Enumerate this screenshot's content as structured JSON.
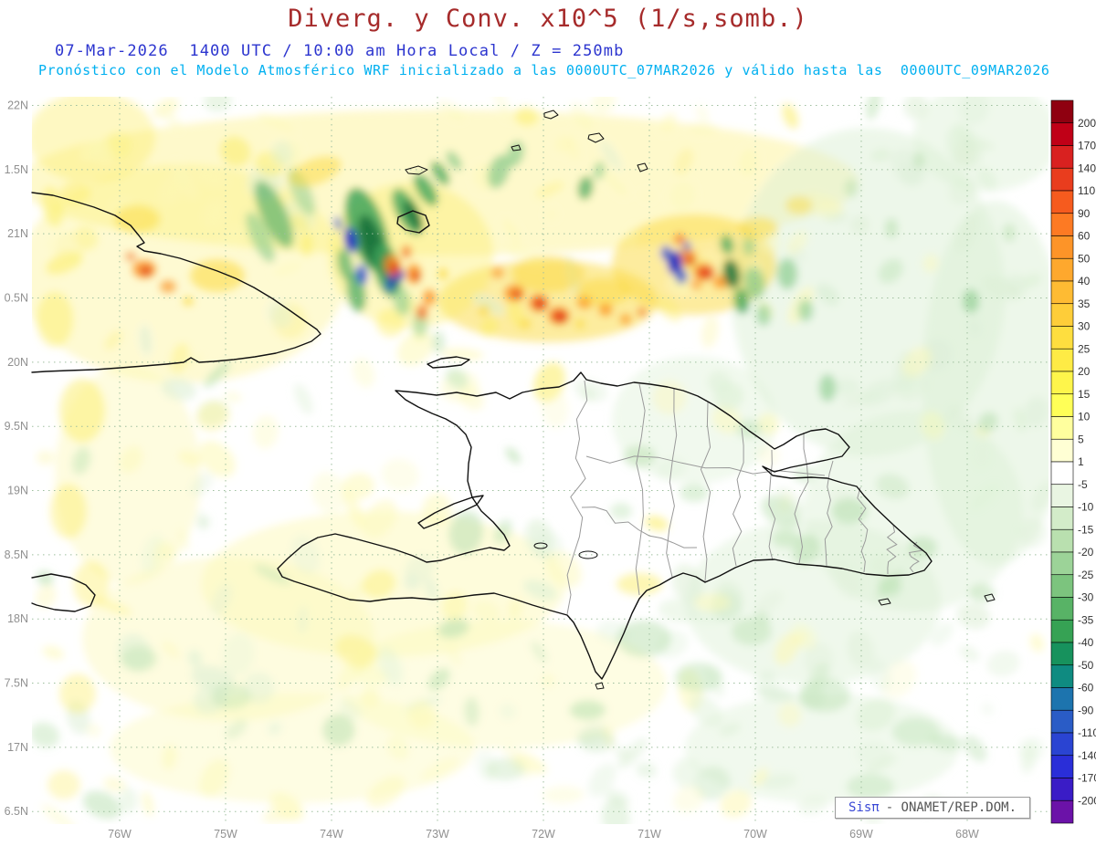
{
  "header": {
    "title": "Diverg. y Conv. x10^5 (1/s,somb.)",
    "subtitle_time": "07-Mar-2026  1400 UTC / 10:00 am Hora Local / Z = 250mb",
    "subtitle_model": "Pronóstico con el Modelo Atmosférico WRF inicializado a las 0000UTC_07MAR2026 y válido hasta las  0000UTC_09MAR2026"
  },
  "credit": {
    "brand": "Sisπ",
    "org": "- ONAMET/REP.DOM."
  },
  "axes": {
    "lat_labels": [
      "22N",
      "1.5N",
      "21N",
      "0.5N",
      "20N",
      "9.5N",
      "19N",
      "8.5N",
      "18N",
      "7.5N",
      "17N",
      "6.5N"
    ],
    "lon_labels": [
      "76W",
      "75W",
      "74W",
      "73W",
      "72W",
      "71W",
      "70W",
      "69W",
      "68W"
    ]
  },
  "colorbar": {
    "labels": [
      "200",
      "170",
      "140",
      "110",
      "90",
      "60",
      "50",
      "40",
      "35",
      "30",
      "25",
      "20",
      "15",
      "10",
      "5",
      "1",
      "-5",
      "-10",
      "-15",
      "-20",
      "-25",
      "-30",
      "-35",
      "-40",
      "-50",
      "-60",
      "-90",
      "-110",
      "-140",
      "-170",
      "-200"
    ],
    "colors": [
      "#8f0010",
      "#c00017",
      "#d92120",
      "#e93d1e",
      "#f65b1e",
      "#fd7a23",
      "#fd9428",
      "#fea82d",
      "#febb33",
      "#fecd39",
      "#fede3f",
      "#feeb45",
      "#fef54b",
      "#ffff57",
      "#ffff9e",
      "#ffffd4",
      "#ffffff",
      "#e9f5e2",
      "#d3ecc9",
      "#b9e0af",
      "#9cd398",
      "#7cc47e",
      "#58b366",
      "#36a254",
      "#17925d",
      "#0f8b81",
      "#1d74ae",
      "#2a5cc6",
      "#2a44d2",
      "#2a2ed8",
      "#3a1cc6",
      "#6b12a8"
    ]
  },
  "colors": {
    "title": "#a62b2b",
    "subtitle_time": "#2c35cf",
    "subtitle_model": "#00b0f0",
    "grid": "#9fbf9f",
    "coast": "#111111",
    "province": "#9a9a9a",
    "axis_text": "#909090",
    "colorbar_text": "#333333"
  },
  "palette": {
    "Y1": "#fdf9b8",
    "Y2": "#fcee6a",
    "Y3": "#fbd93b",
    "O1": "#fb9227",
    "O2": "#f2611e",
    "R1": "#dd2e1a",
    "G1": "#dcefd5",
    "G2": "#b9e0b0",
    "G3": "#85c988",
    "G4": "#3fa55a",
    "G5": "#17713a",
    "T1": "#128a70",
    "B1": "#2b54cc",
    "B2": "#1b2ec2"
  },
  "field": {
    "washes": [
      [
        480,
        200,
        460,
        80,
        0,
        "Y2",
        0.35
      ],
      [
        200,
        300,
        180,
        120,
        0,
        "Y2",
        0.3
      ],
      [
        100,
        150,
        70,
        50,
        0,
        "Y2",
        0.4
      ],
      [
        950,
        320,
        150,
        180,
        0,
        "G1",
        0.5
      ],
      [
        1090,
        420,
        80,
        200,
        0,
        "G1",
        0.5
      ],
      [
        1000,
        560,
        120,
        110,
        0,
        "G1",
        0.45
      ],
      [
        890,
        660,
        140,
        90,
        0,
        "G1",
        0.45
      ],
      [
        760,
        460,
        90,
        70,
        0,
        "G1",
        0.4
      ],
      [
        1080,
        150,
        80,
        60,
        0,
        "G1",
        0.45
      ],
      [
        420,
        640,
        200,
        80,
        0,
        "Y1",
        0.5
      ],
      [
        250,
        700,
        160,
        90,
        0,
        "Y1",
        0.45
      ],
      [
        550,
        750,
        180,
        70,
        0,
        "Y1",
        0.4
      ],
      [
        140,
        520,
        80,
        120,
        0,
        "Y1",
        0.45
      ],
      [
        320,
        820,
        200,
        60,
        0,
        "Y1",
        0.4
      ],
      [
        900,
        820,
        150,
        60,
        0,
        "G1",
        0.4
      ],
      [
        600,
        330,
        120,
        45,
        0,
        "Y3",
        0.5
      ],
      [
        760,
        290,
        90,
        55,
        0,
        "Y3",
        0.5
      ],
      [
        450,
        280,
        90,
        80,
        0,
        "Y2",
        0.4
      ]
    ],
    "blobs": [
      [
        300,
        235,
        14,
        40,
        -25,
        "G4",
        0.6
      ],
      [
        285,
        260,
        10,
        30,
        -25,
        "G3",
        0.6
      ],
      [
        330,
        210,
        10,
        28,
        -25,
        "G3",
        0.5
      ],
      [
        402,
        252,
        20,
        48,
        -18,
        "G4",
        0.85
      ],
      [
        408,
        268,
        12,
        34,
        -18,
        "G5",
        0.9
      ],
      [
        424,
        296,
        14,
        30,
        -12,
        "G4",
        0.85
      ],
      [
        428,
        298,
        8,
        20,
        -12,
        "G5",
        0.9
      ],
      [
        446,
        232,
        12,
        28,
        -28,
        "G4",
        0.8
      ],
      [
        452,
        236,
        7,
        18,
        -28,
        "G5",
        0.85
      ],
      [
        466,
        208,
        9,
        20,
        -32,
        "G4",
        0.8
      ],
      [
        482,
        190,
        7,
        15,
        -33,
        "G4",
        0.75
      ],
      [
        497,
        176,
        6,
        12,
        -35,
        "G3",
        0.7
      ],
      [
        390,
        320,
        10,
        22,
        -10,
        "G4",
        0.7
      ],
      [
        378,
        290,
        8,
        18,
        -12,
        "G4",
        0.65
      ],
      [
        440,
        330,
        9,
        16,
        -8,
        "G3",
        0.6
      ],
      [
        460,
        355,
        8,
        14,
        0,
        "G3",
        0.5
      ],
      [
        480,
        375,
        7,
        12,
        0,
        "G2",
        0.5
      ],
      [
        384,
        263,
        7,
        14,
        -10,
        "B2",
        0.95
      ],
      [
        396,
        301,
        6,
        11,
        -5,
        "B1",
        0.9
      ],
      [
        433,
        301,
        10,
        7,
        0,
        "B2",
        0.95
      ],
      [
        427,
        313,
        5,
        6,
        0,
        "B1",
        0.85
      ],
      [
        370,
        245,
        4,
        8,
        -15,
        "B1",
        0.7
      ],
      [
        430,
        291,
        9,
        12,
        -10,
        "O1",
        0.9
      ],
      [
        432,
        294,
        5,
        7,
        -10,
        "R1",
        0.9
      ],
      [
        453,
        300,
        8,
        11,
        0,
        "O1",
        0.9
      ],
      [
        456,
        303,
        4,
        6,
        0,
        "R1",
        0.85
      ],
      [
        470,
        326,
        7,
        9,
        0,
        "O1",
        0.85
      ],
      [
        462,
        342,
        6,
        8,
        0,
        "O2",
        0.8
      ],
      [
        445,
        276,
        5,
        7,
        0,
        "O2",
        0.8
      ],
      [
        485,
        300,
        5,
        6,
        0,
        "Y3",
        0.8
      ],
      [
        563,
        321,
        11,
        9,
        0,
        "O1",
        0.9
      ],
      [
        566,
        323,
        5,
        5,
        0,
        "R1",
        0.85
      ],
      [
        590,
        332,
        10,
        9,
        0,
        "O2",
        0.9
      ],
      [
        592,
        334,
        5,
        5,
        0,
        "R1",
        0.9
      ],
      [
        612,
        346,
        11,
        9,
        0,
        "O2",
        0.9
      ],
      [
        614,
        348,
        6,
        5,
        0,
        "R1",
        0.9
      ],
      [
        640,
        331,
        8,
        7,
        0,
        "O1",
        0.85
      ],
      [
        663,
        339,
        7,
        7,
        0,
        "O1",
        0.85
      ],
      [
        685,
        350,
        6,
        6,
        0,
        "O1",
        0.75
      ],
      [
        703,
        342,
        5,
        5,
        0,
        "O2",
        0.7
      ],
      [
        545,
        299,
        7,
        6,
        0,
        "O1",
        0.7
      ],
      [
        530,
        340,
        6,
        6,
        0,
        "Y3",
        0.7
      ],
      [
        575,
        355,
        6,
        5,
        0,
        "Y3",
        0.7
      ],
      [
        635,
        355,
        5,
        5,
        0,
        "Y3",
        0.7
      ],
      [
        600,
        300,
        40,
        20,
        0,
        "Y3",
        0.5
      ],
      [
        660,
        320,
        30,
        15,
        0,
        "Y3",
        0.5
      ],
      [
        752,
        282,
        10,
        9,
        0,
        "O1",
        0.9
      ],
      [
        756,
        286,
        5,
        5,
        0,
        "R1",
        0.9
      ],
      [
        771,
        298,
        11,
        9,
        0,
        "O2",
        0.9
      ],
      [
        774,
        300,
        6,
        5,
        0,
        "R1",
        0.85
      ],
      [
        789,
        309,
        8,
        7,
        0,
        "O1",
        0.85
      ],
      [
        762,
        312,
        6,
        5,
        0,
        "O1",
        0.8
      ],
      [
        744,
        262,
        6,
        6,
        0,
        "O2",
        0.7
      ],
      [
        739,
        288,
        8,
        13,
        0,
        "B2",
        0.95
      ],
      [
        746,
        303,
        6,
        8,
        0,
        "B1",
        0.9
      ],
      [
        729,
        277,
        5,
        8,
        0,
        "B1",
        0.85
      ],
      [
        752,
        270,
        4,
        6,
        0,
        "B1",
        0.7
      ],
      [
        801,
        300,
        9,
        16,
        -10,
        "G5",
        0.85
      ],
      [
        812,
        330,
        8,
        14,
        -8,
        "G4",
        0.8
      ],
      [
        796,
        268,
        7,
        11,
        -12,
        "G4",
        0.75
      ],
      [
        826,
        310,
        11,
        18,
        -8,
        "G3",
        0.7
      ],
      [
        836,
        345,
        8,
        12,
        0,
        "G3",
        0.6
      ],
      [
        820,
        270,
        6,
        10,
        0,
        "G3",
        0.6
      ],
      [
        546,
        188,
        11,
        19,
        18,
        "G3",
        0.7
      ],
      [
        564,
        169,
        9,
        15,
        20,
        "G3",
        0.65
      ],
      [
        641,
        206,
        8,
        13,
        10,
        "G4",
        0.7
      ],
      [
        656,
        187,
        6,
        10,
        12,
        "G3",
        0.6
      ],
      [
        862,
        300,
        11,
        17,
        0,
        "G3",
        0.65
      ],
      [
        882,
        340,
        8,
        12,
        0,
        "G3",
        0.6
      ],
      [
        906,
        425,
        9,
        15,
        0,
        "G3",
        0.6
      ],
      [
        1063,
        330,
        9,
        13,
        0,
        "G3",
        0.6
      ],
      [
        976,
        250,
        7,
        11,
        0,
        "G2",
        0.6
      ],
      [
        932,
        206,
        7,
        10,
        0,
        "G2",
        0.55
      ],
      [
        1006,
        176,
        6,
        9,
        0,
        "G2",
        0.55
      ],
      [
        1105,
        255,
        7,
        10,
        0,
        "G2",
        0.5
      ],
      [
        158,
        295,
        13,
        10,
        0,
        "O1",
        0.85
      ],
      [
        160,
        297,
        6,
        5,
        0,
        "R1",
        0.85
      ],
      [
        184,
        314,
        9,
        7,
        0,
        "O1",
        0.7
      ],
      [
        143,
        281,
        6,
        5,
        0,
        "O2",
        0.6
      ],
      [
        206,
        330,
        6,
        5,
        0,
        "Y3",
        0.7
      ],
      [
        238,
        302,
        30,
        18,
        0,
        "Y3",
        0.55
      ],
      [
        150,
        240,
        25,
        15,
        0,
        "Y3",
        0.5
      ],
      [
        345,
        188,
        30,
        14,
        -20,
        "Y3",
        0.5
      ],
      [
        830,
        250,
        22,
        12,
        0,
        "Y3",
        0.5
      ],
      [
        875,
        225,
        15,
        10,
        0,
        "Y3",
        0.45
      ],
      [
        930,
        560,
        20,
        14,
        0,
        "G2",
        0.6
      ],
      [
        1010,
        600,
        16,
        12,
        0,
        "G2",
        0.55
      ],
      [
        1075,
        650,
        14,
        10,
        0,
        "G2",
        0.5
      ],
      [
        860,
        590,
        15,
        10,
        0,
        "G2",
        0.5
      ],
      [
        700,
        500,
        18,
        12,
        0,
        "G2",
        0.5
      ],
      [
        760,
        540,
        16,
        10,
        0,
        "G2",
        0.45
      ],
      [
        820,
        470,
        14,
        10,
        0,
        "G2",
        0.45
      ],
      [
        880,
        520,
        12,
        9,
        0,
        "G2",
        0.4
      ],
      [
        680,
        560,
        12,
        9,
        0,
        "G2",
        0.4
      ],
      [
        700,
        640,
        25,
        12,
        0,
        "Y2",
        0.5
      ],
      [
        780,
        660,
        20,
        10,
        0,
        "Y1",
        0.5
      ],
      [
        705,
        700,
        30,
        20,
        0,
        "G2",
        0.5
      ],
      [
        765,
        742,
        26,
        16,
        0,
        "G2",
        0.45
      ],
      [
        823,
        692,
        22,
        15,
        0,
        "G2",
        0.45
      ],
      [
        903,
        762,
        28,
        18,
        0,
        "G2",
        0.45
      ],
      [
        1003,
        802,
        26,
        16,
        0,
        "G2",
        0.4
      ],
      [
        953,
        862,
        26,
        14,
        0,
        "G2",
        0.4
      ],
      [
        152,
        722,
        20,
        14,
        0,
        "G2",
        0.4
      ],
      [
        253,
        763,
        22,
        14,
        0,
        "G2",
        0.4
      ],
      [
        553,
        843,
        22,
        12,
        0,
        "G2",
        0.35
      ],
      [
        653,
        812,
        20,
        12,
        0,
        "G2",
        0.35
      ],
      [
        90,
        450,
        25,
        35,
        0,
        "Y2",
        0.5
      ],
      [
        75,
        560,
        20,
        30,
        0,
        "Y2",
        0.45
      ],
      [
        60,
        350,
        20,
        30,
        0,
        "Y2",
        0.5
      ],
      [
        100,
        640,
        20,
        25,
        0,
        "Y2",
        0.4
      ],
      [
        85,
        760,
        20,
        22,
        0,
        "Y2",
        0.4
      ],
      [
        70,
        860,
        18,
        16,
        0,
        "Y2",
        0.35
      ]
    ]
  }
}
